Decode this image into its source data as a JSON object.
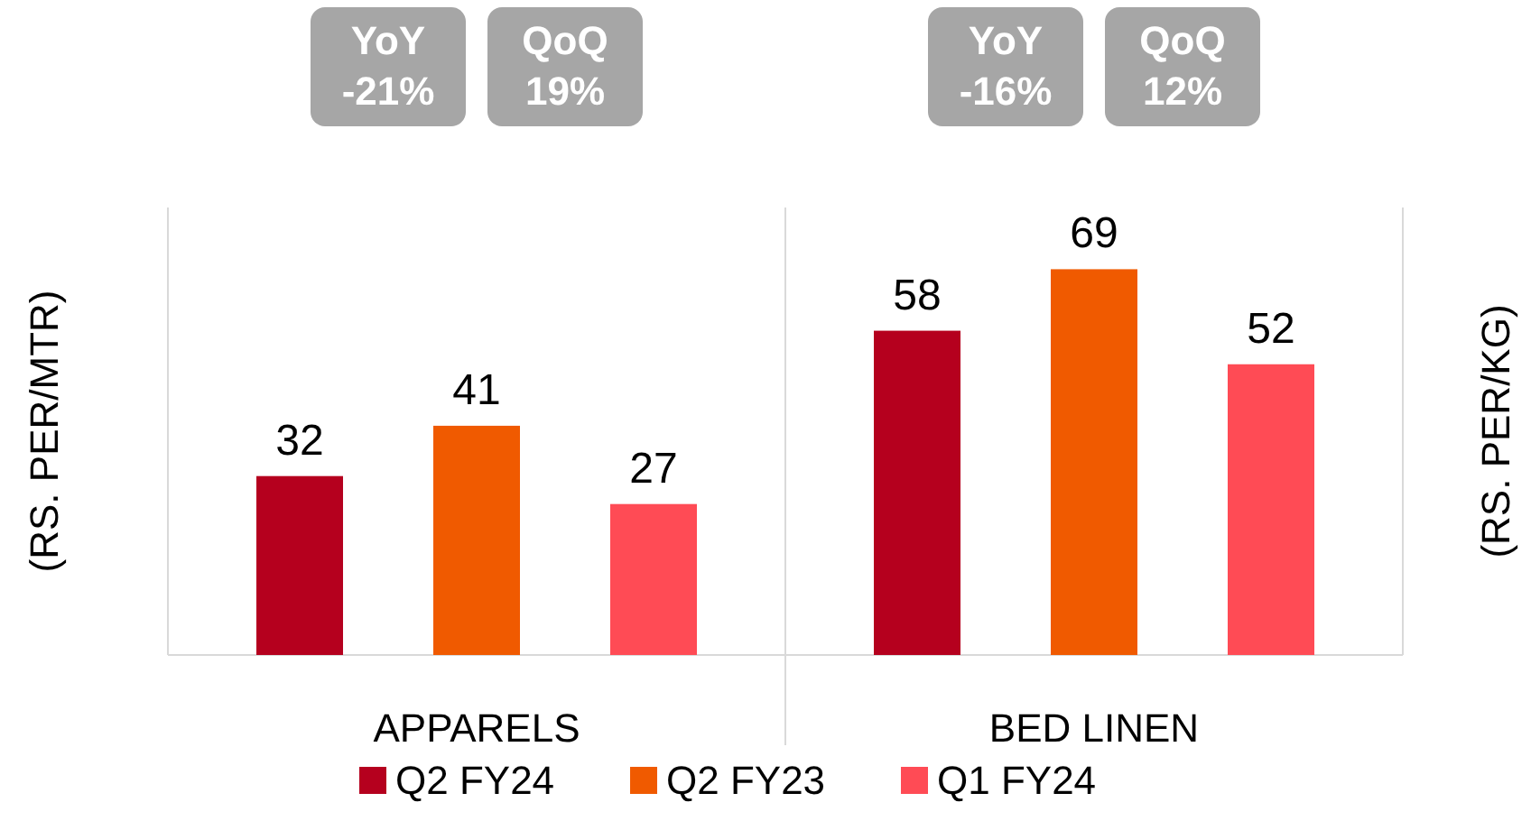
{
  "chart_data": {
    "type": "bar",
    "categories": [
      "APPARELS",
      "BED LINEN"
    ],
    "series": [
      {
        "name": "Q2 FY24",
        "color": "#b5001e",
        "values": [
          32,
          58
        ]
      },
      {
        "name": "Q2 FY23",
        "color": "#f05a00",
        "values": [
          41,
          69
        ]
      },
      {
        "name": "Q1 FY24",
        "color": "#ff4b55",
        "values": [
          27,
          52
        ]
      }
    ],
    "ylabel": "(RS. PER/MTR)",
    "y2label": "(RS. PER/KG)",
    "data_labels": true,
    "legend": "bottom",
    "annotations": [
      "YoY\n-21%",
      "QoQ\n19%",
      "YoY\n-16%",
      "QoQ\n12%"
    ]
  }
}
